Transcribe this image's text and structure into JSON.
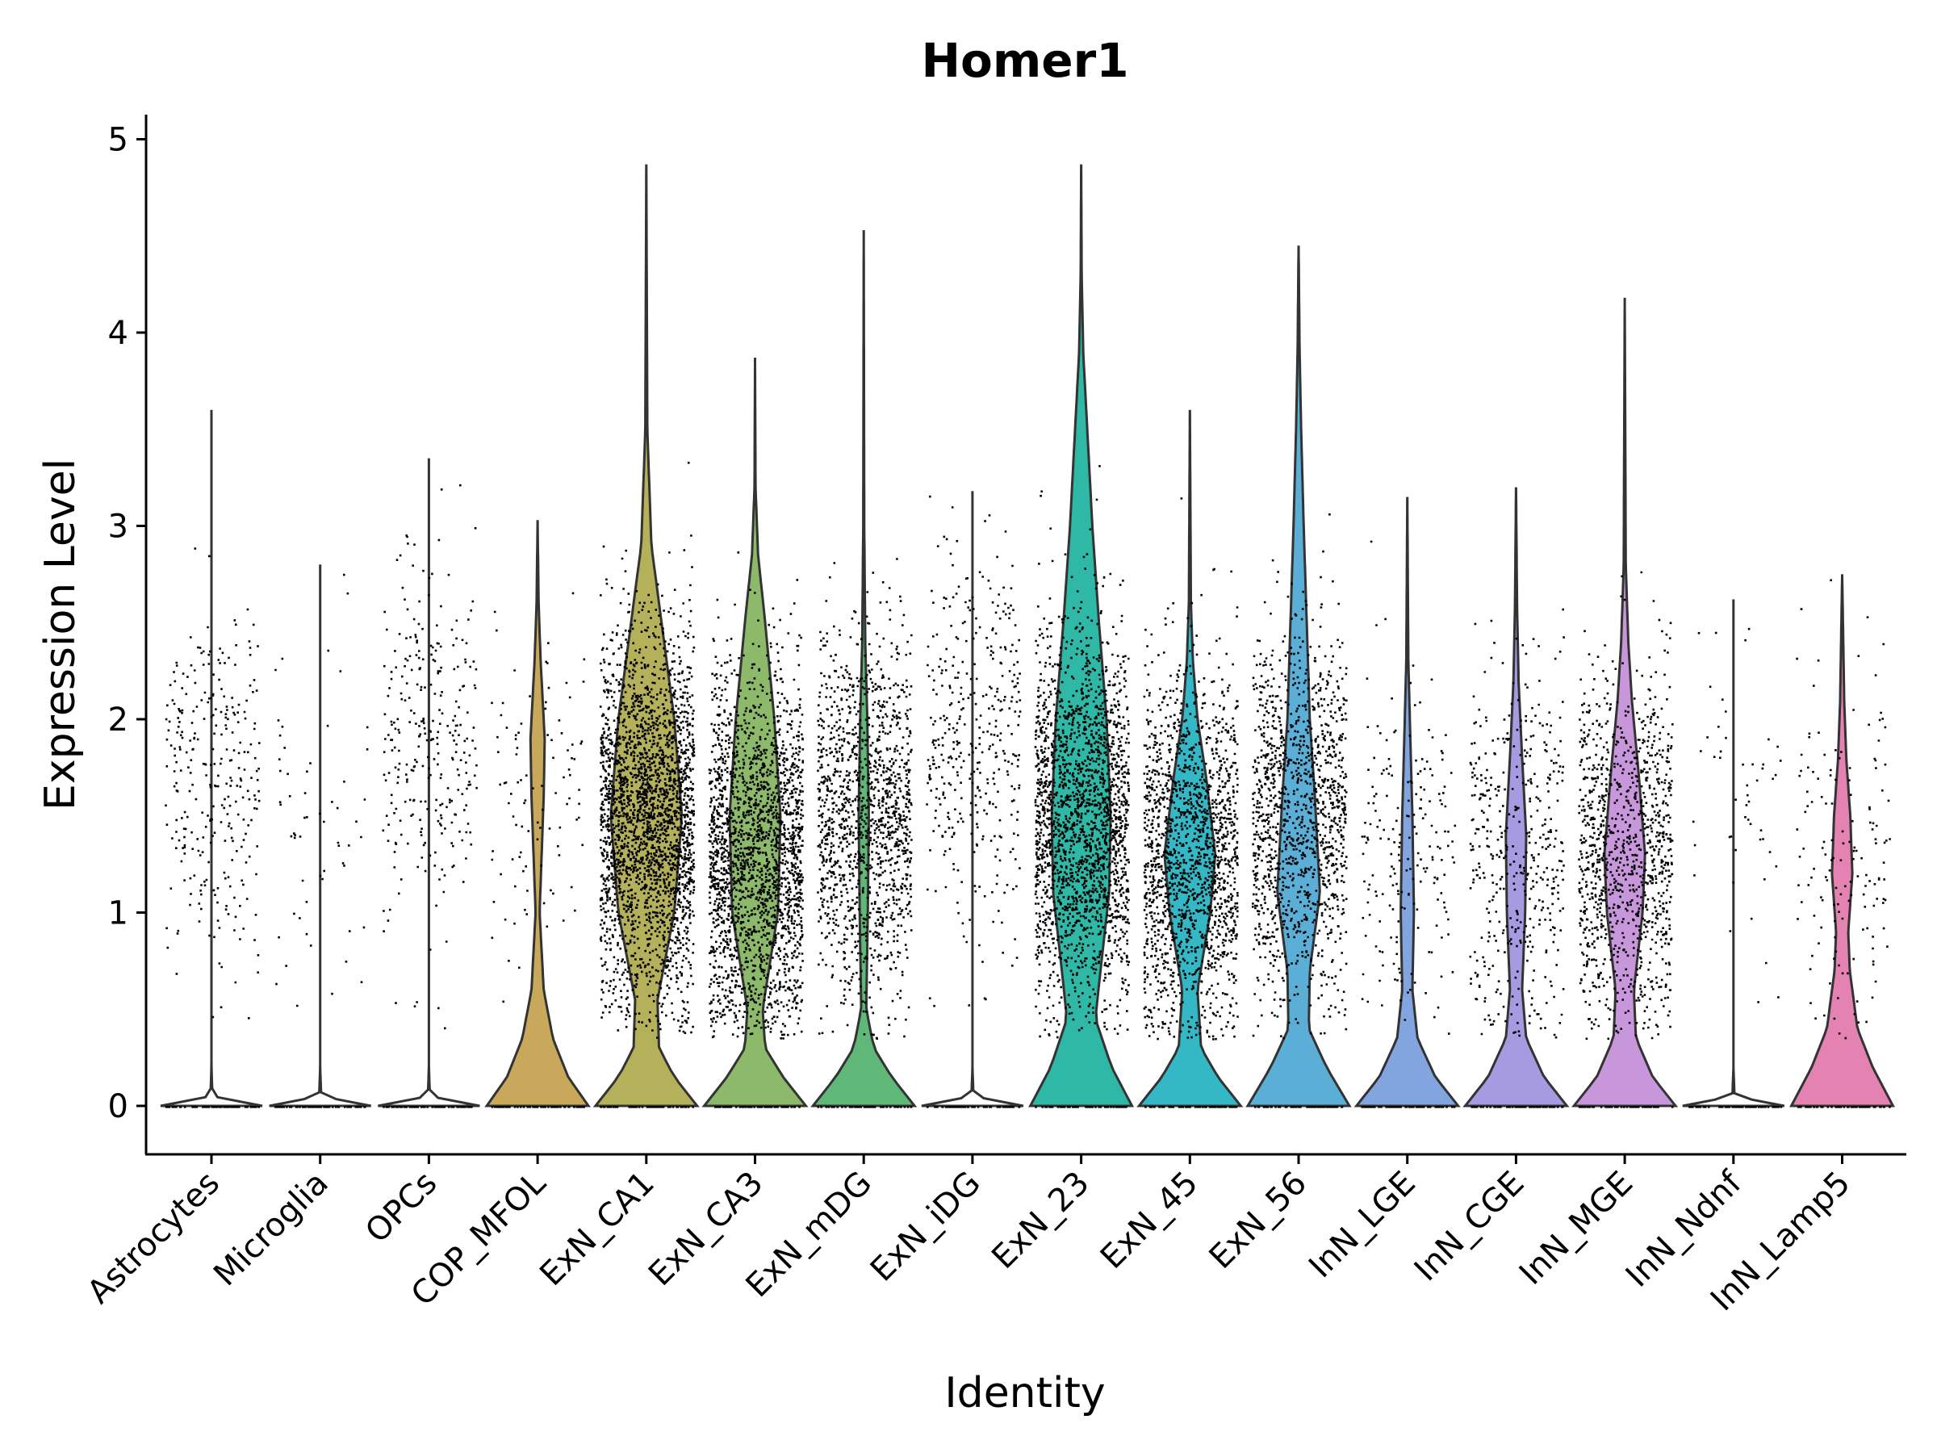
{
  "chart_data": {
    "type": "violin",
    "title": "Homer1",
    "xlabel": "Identity",
    "ylabel": "Expression Level",
    "ylim": [
      -0.25,
      5.13
    ],
    "yticks": [
      0,
      1,
      2,
      3,
      4,
      5
    ],
    "grid": false,
    "legend": "none",
    "categories": [
      "Astrocytes",
      "Microglia",
      "OPCs",
      "COP_MFOL",
      "ExN_CA1",
      "ExN_CA3",
      "ExN_mDG",
      "ExN_iDG",
      "ExN_23",
      "ExN_45",
      "ExN_56",
      "InN_LGE",
      "InN_CGE",
      "InN_MGE",
      "InN_Ndnf",
      "InN_Lamp5"
    ],
    "series": [
      {
        "category": "Astrocytes",
        "color": "#ffffff",
        "max": 3.6,
        "nonzero_cells": 300,
        "median_nonzero": 1.7,
        "profile": [
          [
            0,
            1.0
          ],
          [
            0.05,
            0.02
          ],
          [
            0.2,
            0.0
          ],
          [
            3.6,
            0.0
          ]
        ]
      },
      {
        "category": "Microglia",
        "color": "#ffffff",
        "max": 2.8,
        "nonzero_cells": 60,
        "median_nonzero": 1.5,
        "profile": [
          [
            0,
            1.0
          ],
          [
            0.05,
            0.02
          ],
          [
            0.2,
            0.0
          ],
          [
            2.8,
            0.0
          ]
        ]
      },
      {
        "category": "OPCs",
        "color": "#ffffff",
        "max": 3.35,
        "nonzero_cells": 300,
        "median_nonzero": 1.9,
        "profile": [
          [
            0,
            1.0
          ],
          [
            0.05,
            0.02
          ],
          [
            0.2,
            0.0
          ],
          [
            3.35,
            0.0
          ]
        ]
      },
      {
        "category": "COP_MFOL",
        "color": "#C8A95C",
        "max": 3.03,
        "nonzero_cells": 100,
        "median_nonzero": 1.6,
        "profile": [
          [
            0,
            1.0
          ],
          [
            0.15,
            0.6
          ],
          [
            0.35,
            0.3
          ],
          [
            0.6,
            0.12
          ],
          [
            1.0,
            0.04
          ],
          [
            1.6,
            0.12
          ],
          [
            1.9,
            0.14
          ],
          [
            2.3,
            0.06
          ],
          [
            2.6,
            0.02
          ],
          [
            3.03,
            0.0
          ]
        ]
      },
      {
        "category": "ExN_CA1",
        "color": "#B4B15A",
        "max": 4.87,
        "nonzero_cells": 3200,
        "median_nonzero": 1.5,
        "profile": [
          [
            0,
            1.0
          ],
          [
            0.15,
            0.55
          ],
          [
            0.3,
            0.25
          ],
          [
            0.55,
            0.22
          ],
          [
            1.0,
            0.55
          ],
          [
            1.5,
            0.7
          ],
          [
            2.0,
            0.55
          ],
          [
            2.5,
            0.3
          ],
          [
            2.9,
            0.1
          ],
          [
            3.5,
            0.02
          ],
          [
            4.87,
            0.0
          ]
        ]
      },
      {
        "category": "ExN_CA3",
        "color": "#8DBA6A",
        "max": 3.87,
        "nonzero_cells": 2200,
        "median_nonzero": 1.3,
        "profile": [
          [
            0,
            1.0
          ],
          [
            0.15,
            0.55
          ],
          [
            0.3,
            0.2
          ],
          [
            0.5,
            0.15
          ],
          [
            1.0,
            0.45
          ],
          [
            1.5,
            0.5
          ],
          [
            2.0,
            0.38
          ],
          [
            2.5,
            0.2
          ],
          [
            2.85,
            0.06
          ],
          [
            3.2,
            0.01
          ],
          [
            3.87,
            0.0
          ]
        ]
      },
      {
        "category": "ExN_mDG",
        "color": "#5FB878",
        "max": 4.53,
        "nonzero_cells": 1400,
        "median_nonzero": 1.5,
        "profile": [
          [
            0,
            1.0
          ],
          [
            0.15,
            0.55
          ],
          [
            0.3,
            0.2
          ],
          [
            0.5,
            0.05
          ],
          [
            1.0,
            0.08
          ],
          [
            1.5,
            0.1
          ],
          [
            2.0,
            0.07
          ],
          [
            2.4,
            0.03
          ],
          [
            3.0,
            0.01
          ],
          [
            4.53,
            0.0
          ]
        ]
      },
      {
        "category": "ExN_iDG",
        "color": "#ffffff",
        "max": 3.18,
        "nonzero_cells": 400,
        "median_nonzero": 1.9,
        "profile": [
          [
            0,
            1.0
          ],
          [
            0.05,
            0.02
          ],
          [
            0.2,
            0.0
          ],
          [
            3.18,
            0.0
          ]
        ]
      },
      {
        "category": "ExN_23",
        "color": "#2EB8A5",
        "max": 4.87,
        "nonzero_cells": 2200,
        "median_nonzero": 1.5,
        "profile": [
          [
            0,
            1.0
          ],
          [
            0.2,
            0.6
          ],
          [
            0.45,
            0.28
          ],
          [
            0.7,
            0.38
          ],
          [
            1.1,
            0.55
          ],
          [
            1.5,
            0.58
          ],
          [
            2.0,
            0.5
          ],
          [
            2.5,
            0.35
          ],
          [
            3.0,
            0.22
          ],
          [
            3.5,
            0.12
          ],
          [
            3.9,
            0.04
          ],
          [
            4.3,
            0.01
          ],
          [
            4.87,
            0.0
          ]
        ]
      },
      {
        "category": "ExN_45",
        "color": "#35B8C6",
        "max": 3.6,
        "nonzero_cells": 1700,
        "median_nonzero": 1.3,
        "profile": [
          [
            0,
            1.0
          ],
          [
            0.15,
            0.55
          ],
          [
            0.3,
            0.22
          ],
          [
            0.6,
            0.15
          ],
          [
            1.0,
            0.4
          ],
          [
            1.3,
            0.5
          ],
          [
            1.7,
            0.32
          ],
          [
            2.0,
            0.15
          ],
          [
            2.3,
            0.06
          ],
          [
            2.6,
            0.02
          ],
          [
            3.6,
            0.0
          ]
        ]
      },
      {
        "category": "ExN_56",
        "color": "#5BAFD6",
        "max": 4.45,
        "nonzero_cells": 1300,
        "median_nonzero": 1.5,
        "profile": [
          [
            0,
            1.0
          ],
          [
            0.2,
            0.55
          ],
          [
            0.4,
            0.2
          ],
          [
            0.7,
            0.22
          ],
          [
            1.1,
            0.42
          ],
          [
            1.6,
            0.32
          ],
          [
            2.0,
            0.22
          ],
          [
            2.5,
            0.16
          ],
          [
            3.0,
            0.1
          ],
          [
            3.5,
            0.05
          ],
          [
            3.9,
            0.02
          ],
          [
            4.45,
            0.0
          ]
        ]
      },
      {
        "category": "InN_LGE",
        "color": "#83A5DF",
        "max": 3.15,
        "nonzero_cells": 200,
        "median_nonzero": 1.3,
        "profile": [
          [
            0,
            1.0
          ],
          [
            0.15,
            0.55
          ],
          [
            0.35,
            0.2
          ],
          [
            0.6,
            0.1
          ],
          [
            1.0,
            0.13
          ],
          [
            1.5,
            0.1
          ],
          [
            1.9,
            0.06
          ],
          [
            2.3,
            0.02
          ],
          [
            3.15,
            0.0
          ]
        ]
      },
      {
        "category": "InN_CGE",
        "color": "#A69BE0",
        "max": 3.2,
        "nonzero_cells": 450,
        "median_nonzero": 1.3,
        "profile": [
          [
            0,
            1.0
          ],
          [
            0.15,
            0.55
          ],
          [
            0.35,
            0.2
          ],
          [
            0.6,
            0.12
          ],
          [
            1.0,
            0.18
          ],
          [
            1.4,
            0.2
          ],
          [
            1.8,
            0.12
          ],
          [
            2.2,
            0.05
          ],
          [
            2.6,
            0.02
          ],
          [
            3.2,
            0.0
          ]
        ]
      },
      {
        "category": "InN_MGE",
        "color": "#C896DB",
        "max": 4.18,
        "nonzero_cells": 1100,
        "median_nonzero": 1.3,
        "profile": [
          [
            0,
            1.0
          ],
          [
            0.15,
            0.55
          ],
          [
            0.35,
            0.22
          ],
          [
            0.6,
            0.18
          ],
          [
            1.0,
            0.35
          ],
          [
            1.3,
            0.4
          ],
          [
            1.7,
            0.28
          ],
          [
            2.1,
            0.14
          ],
          [
            2.4,
            0.07
          ],
          [
            2.8,
            0.02
          ],
          [
            4.18,
            0.0
          ]
        ]
      },
      {
        "category": "InN_Ndnf",
        "color": "#ffffff",
        "max": 2.62,
        "nonzero_cells": 50,
        "median_nonzero": 1.4,
        "profile": [
          [
            0,
            1.0
          ],
          [
            0.05,
            0.02
          ],
          [
            0.2,
            0.0
          ],
          [
            2.62,
            0.0
          ]
        ]
      },
      {
        "category": "InN_Lamp5",
        "color": "#E483B2",
        "max": 2.75,
        "nonzero_cells": 150,
        "median_nonzero": 1.3,
        "profile": [
          [
            0,
            1.0
          ],
          [
            0.2,
            0.6
          ],
          [
            0.4,
            0.3
          ],
          [
            0.7,
            0.15
          ],
          [
            0.9,
            0.12
          ],
          [
            1.2,
            0.2
          ],
          [
            1.5,
            0.16
          ],
          [
            1.8,
            0.08
          ],
          [
            2.1,
            0.04
          ],
          [
            2.75,
            0.0
          ]
        ]
      }
    ]
  }
}
